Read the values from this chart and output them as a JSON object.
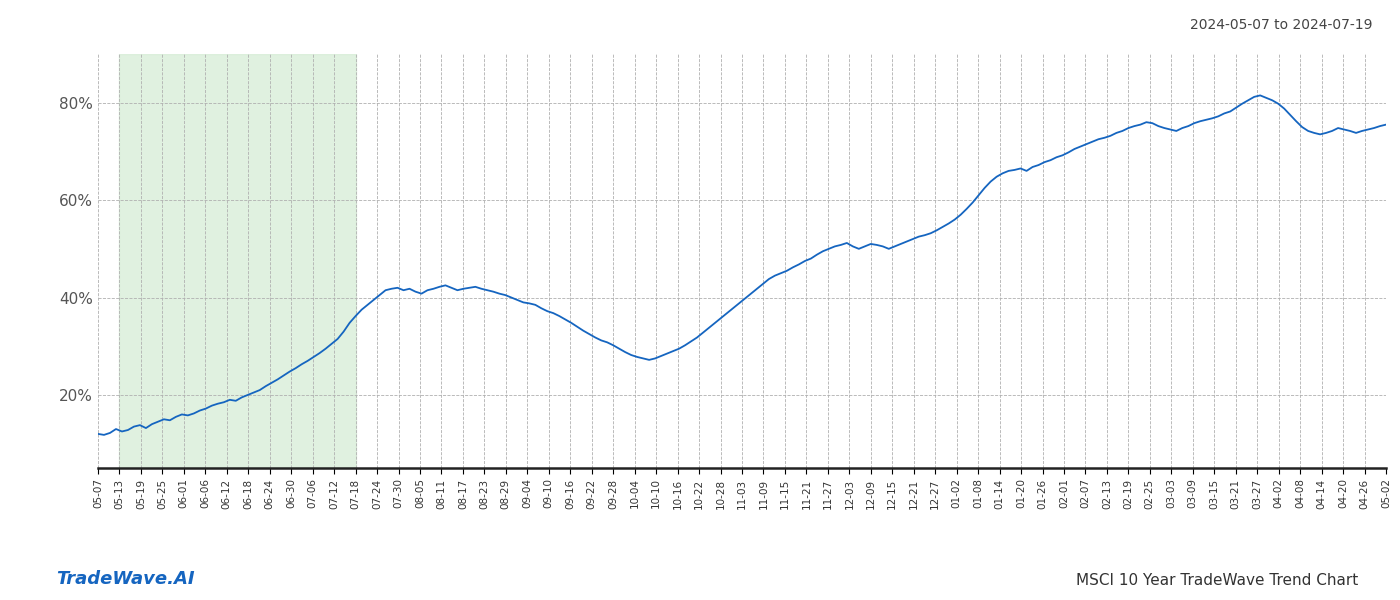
{
  "title_right": "2024-05-07 to 2024-07-19",
  "footer_left": "TradeWave.AI",
  "footer_right": "MSCI 10 Year TradeWave Trend Chart",
  "line_color": "#1565c0",
  "shading_color": "#d4ecd4",
  "shading_alpha": 0.7,
  "bg_color": "#ffffff",
  "grid_color": "#b0b0b0",
  "y_ticks": [
    0.2,
    0.4,
    0.6,
    0.8
  ],
  "ylim": [
    0.05,
    0.9
  ],
  "shade_start_label": "05-13",
  "shade_end_label": "07-18",
  "x_tick_labels": [
    "05-07",
    "05-13",
    "05-19",
    "05-25",
    "06-01",
    "06-06",
    "06-12",
    "06-18",
    "06-24",
    "06-30",
    "07-06",
    "07-12",
    "07-18",
    "07-24",
    "07-30",
    "08-05",
    "08-11",
    "08-17",
    "08-23",
    "08-29",
    "09-04",
    "09-10",
    "09-16",
    "09-22",
    "09-28",
    "10-04",
    "10-10",
    "10-16",
    "10-22",
    "10-28",
    "11-03",
    "11-09",
    "11-15",
    "11-21",
    "11-27",
    "12-03",
    "12-09",
    "12-15",
    "12-21",
    "12-27",
    "01-02",
    "01-08",
    "01-14",
    "01-20",
    "01-26",
    "02-01",
    "02-07",
    "02-13",
    "02-19",
    "02-25",
    "03-03",
    "03-09",
    "03-15",
    "03-21",
    "03-27",
    "04-02",
    "04-08",
    "04-14",
    "04-20",
    "04-26",
    "05-02"
  ],
  "values": [
    0.12,
    0.118,
    0.122,
    0.13,
    0.125,
    0.128,
    0.135,
    0.138,
    0.132,
    0.14,
    0.145,
    0.15,
    0.148,
    0.155,
    0.16,
    0.158,
    0.162,
    0.168,
    0.172,
    0.178,
    0.182,
    0.185,
    0.19,
    0.188,
    0.195,
    0.2,
    0.205,
    0.21,
    0.218,
    0.225,
    0.232,
    0.24,
    0.248,
    0.255,
    0.263,
    0.27,
    0.278,
    0.286,
    0.295,
    0.305,
    0.315,
    0.33,
    0.348,
    0.362,
    0.375,
    0.385,
    0.395,
    0.405,
    0.415,
    0.418,
    0.42,
    0.415,
    0.418,
    0.412,
    0.408,
    0.415,
    0.418,
    0.422,
    0.425,
    0.42,
    0.415,
    0.418,
    0.42,
    0.422,
    0.418,
    0.415,
    0.412,
    0.408,
    0.405,
    0.4,
    0.395,
    0.39,
    0.388,
    0.385,
    0.378,
    0.372,
    0.368,
    0.362,
    0.355,
    0.348,
    0.34,
    0.332,
    0.325,
    0.318,
    0.312,
    0.308,
    0.302,
    0.295,
    0.288,
    0.282,
    0.278,
    0.275,
    0.272,
    0.275,
    0.28,
    0.285,
    0.29,
    0.295,
    0.302,
    0.31,
    0.318,
    0.328,
    0.338,
    0.348,
    0.358,
    0.368,
    0.378,
    0.388,
    0.398,
    0.408,
    0.418,
    0.428,
    0.438,
    0.445,
    0.45,
    0.455,
    0.462,
    0.468,
    0.475,
    0.48,
    0.488,
    0.495,
    0.5,
    0.505,
    0.508,
    0.512,
    0.505,
    0.5,
    0.505,
    0.51,
    0.508,
    0.505,
    0.5,
    0.505,
    0.51,
    0.515,
    0.52,
    0.525,
    0.528,
    0.532,
    0.538,
    0.545,
    0.552,
    0.56,
    0.57,
    0.582,
    0.595,
    0.61,
    0.625,
    0.638,
    0.648,
    0.655,
    0.66,
    0.662,
    0.665,
    0.66,
    0.668,
    0.672,
    0.678,
    0.682,
    0.688,
    0.692,
    0.698,
    0.705,
    0.71,
    0.715,
    0.72,
    0.725,
    0.728,
    0.732,
    0.738,
    0.742,
    0.748,
    0.752,
    0.755,
    0.76,
    0.758,
    0.752,
    0.748,
    0.745,
    0.742,
    0.748,
    0.752,
    0.758,
    0.762,
    0.765,
    0.768,
    0.772,
    0.778,
    0.782,
    0.79,
    0.798,
    0.805,
    0.812,
    0.815,
    0.81,
    0.805,
    0.798,
    0.788,
    0.775,
    0.762,
    0.75,
    0.742,
    0.738,
    0.735,
    0.738,
    0.742,
    0.748,
    0.745,
    0.742,
    0.738,
    0.742,
    0.745,
    0.748,
    0.752,
    0.755
  ]
}
